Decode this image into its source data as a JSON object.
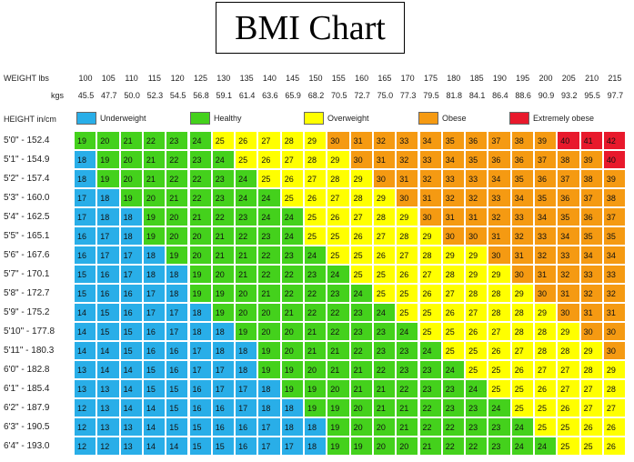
{
  "title": "BMI Chart",
  "headers": {
    "weight_lbs": "WEIGHT lbs",
    "weight_kgs": "kgs",
    "height": "HEIGHT in/cm"
  },
  "legend": [
    {
      "label": "Underweight",
      "color": "#29aee8"
    },
    {
      "label": "Healthy",
      "color": "#44d11c"
    },
    {
      "label": "Overweight",
      "color": "#ffff00"
    },
    {
      "label": "Obese",
      "color": "#f59a12"
    },
    {
      "label": "Extremely obese",
      "color": "#e8192c"
    }
  ],
  "chart_data": {
    "type": "table",
    "weights_lbs": [
      "100",
      "105",
      "110",
      "115",
      "120",
      "125",
      "130",
      "135",
      "140",
      "145",
      "150",
      "155",
      "160",
      "165",
      "170",
      "175",
      "180",
      "185",
      "190",
      "195",
      "200",
      "205",
      "210",
      "215"
    ],
    "weights_kgs": [
      "45.5",
      "47.7",
      "50.0",
      "52.3",
      "54.5",
      "56.8",
      "59.1",
      "61.4",
      "63.6",
      "65.9",
      "68.2",
      "70.5",
      "72.7",
      "75.0",
      "77.3",
      "79.5",
      "81.8",
      "84.1",
      "86.4",
      "88.6",
      "90.9",
      "93.2",
      "95.5",
      "97.7"
    ],
    "heights": [
      "5'0\" - 152.4",
      "5'1\" - 154.9",
      "5'2\" - 157.4",
      "5'3\" - 160.0",
      "5'4\" - 162.5",
      "5'5\" - 165.1",
      "5'6\" - 167.6",
      "5'7\" - 170.1",
      "5'8\" - 172.7",
      "5'9\" - 175.2",
      "5'10\" - 177.8",
      "5'11\" - 180.3",
      "6'0\" - 182.8",
      "6'1\" - 185.4",
      "6'2\" - 187.9",
      "6'3\" - 190.5",
      "6'4\" - 193.0"
    ],
    "bmi": [
      [
        19,
        20,
        21,
        22,
        23,
        24,
        25,
        26,
        27,
        28,
        29,
        30,
        31,
        32,
        33,
        34,
        35,
        36,
        37,
        38,
        39,
        40,
        41,
        42
      ],
      [
        18,
        19,
        20,
        21,
        22,
        23,
        24,
        25,
        26,
        27,
        28,
        29,
        30,
        31,
        32,
        33,
        34,
        35,
        36,
        36,
        37,
        38,
        39,
        40
      ],
      [
        18,
        19,
        20,
        21,
        22,
        22,
        23,
        24,
        25,
        26,
        27,
        28,
        29,
        30,
        31,
        32,
        33,
        33,
        34,
        35,
        36,
        37,
        38,
        39
      ],
      [
        17,
        18,
        19,
        20,
        21,
        22,
        23,
        24,
        24,
        25,
        26,
        27,
        28,
        29,
        30,
        31,
        32,
        32,
        33,
        34,
        35,
        36,
        37,
        38
      ],
      [
        17,
        18,
        18,
        19,
        20,
        21,
        22,
        23,
        24,
        24,
        25,
        26,
        27,
        28,
        29,
        30,
        31,
        31,
        32,
        33,
        34,
        35,
        36,
        37
      ],
      [
        16,
        17,
        18,
        19,
        20,
        20,
        21,
        22,
        23,
        24,
        25,
        25,
        26,
        27,
        28,
        29,
        30,
        30,
        31,
        32,
        33,
        34,
        35,
        35
      ],
      [
        16,
        17,
        17,
        18,
        19,
        20,
        21,
        21,
        22,
        23,
        24,
        25,
        25,
        26,
        27,
        28,
        29,
        29,
        30,
        31,
        32,
        33,
        34,
        34
      ],
      [
        15,
        16,
        17,
        18,
        18,
        19,
        20,
        21,
        22,
        22,
        23,
        24,
        25,
        25,
        26,
        27,
        28,
        29,
        29,
        30,
        31,
        32,
        33,
        33
      ],
      [
        15,
        16,
        16,
        17,
        18,
        19,
        19,
        20,
        21,
        22,
        22,
        23,
        24,
        25,
        25,
        26,
        27,
        28,
        28,
        29,
        30,
        31,
        32,
        32
      ],
      [
        14,
        15,
        16,
        17,
        17,
        18,
        19,
        20,
        20,
        21,
        22,
        22,
        23,
        24,
        25,
        25,
        26,
        27,
        28,
        28,
        29,
        30,
        31,
        31
      ],
      [
        14,
        15,
        15,
        16,
        17,
        18,
        18,
        19,
        20,
        20,
        21,
        22,
        23,
        23,
        24,
        25,
        25,
        26,
        27,
        28,
        28,
        29,
        30,
        30
      ],
      [
        14,
        14,
        15,
        16,
        16,
        17,
        18,
        18,
        19,
        20,
        21,
        21,
        22,
        23,
        23,
        24,
        25,
        25,
        26,
        27,
        28,
        28,
        29,
        30
      ],
      [
        13,
        14,
        14,
        15,
        16,
        17,
        17,
        18,
        19,
        19,
        20,
        21,
        21,
        22,
        23,
        23,
        24,
        25,
        25,
        26,
        27,
        27,
        28,
        29
      ],
      [
        13,
        13,
        14,
        15,
        15,
        16,
        17,
        17,
        18,
        19,
        19,
        20,
        21,
        21,
        22,
        23,
        23,
        24,
        25,
        25,
        26,
        27,
        27,
        28
      ],
      [
        12,
        13,
        14,
        14,
        15,
        16,
        16,
        17,
        18,
        18,
        19,
        19,
        20,
        21,
        21,
        22,
        23,
        23,
        24,
        25,
        25,
        26,
        27,
        27
      ],
      [
        12,
        13,
        13,
        14,
        15,
        15,
        16,
        16,
        17,
        18,
        18,
        19,
        20,
        20,
        21,
        22,
        22,
        23,
        23,
        24,
        25,
        25,
        26,
        26
      ],
      [
        12,
        12,
        13,
        14,
        14,
        15,
        15,
        16,
        17,
        17,
        18,
        19,
        19,
        20,
        20,
        21,
        22,
        22,
        23,
        24,
        24,
        25,
        25,
        26
      ]
    ],
    "categories_by_bmi": {
      "underweight_max": 18,
      "healthy_max": 24,
      "overweight_max": 29,
      "obese_max": 39
    }
  }
}
